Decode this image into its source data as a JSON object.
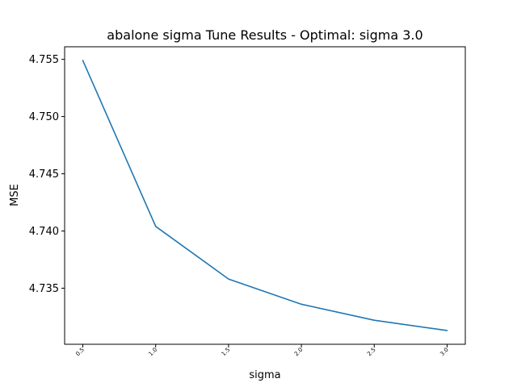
{
  "chart_data": {
    "type": "line",
    "title": "abalone sigma Tune Results - Optimal: sigma 3.0",
    "xlabel": "sigma",
    "ylabel": "MSE",
    "x": [
      0.5,
      1.0,
      1.5,
      2.0,
      2.5,
      3.0
    ],
    "x_tick_labels": [
      "0.5",
      "1.0",
      "1.5",
      "2.0",
      "2.5",
      "3.0"
    ],
    "y_ticks": [
      4.735,
      4.74,
      4.745,
      4.75,
      4.755
    ],
    "y_tick_labels": [
      "4.735",
      "4.740",
      "4.745",
      "4.750",
      "4.755"
    ],
    "series": [
      {
        "values": [
          4.7549,
          4.7404,
          4.7358,
          4.7336,
          4.7322,
          4.7313
        ],
        "color": "#1f77b4"
      }
    ],
    "xlim": [
      0.375,
      3.125
    ],
    "ylim": [
      4.7301,
      4.7561
    ],
    "grid": false,
    "legend": "none"
  }
}
